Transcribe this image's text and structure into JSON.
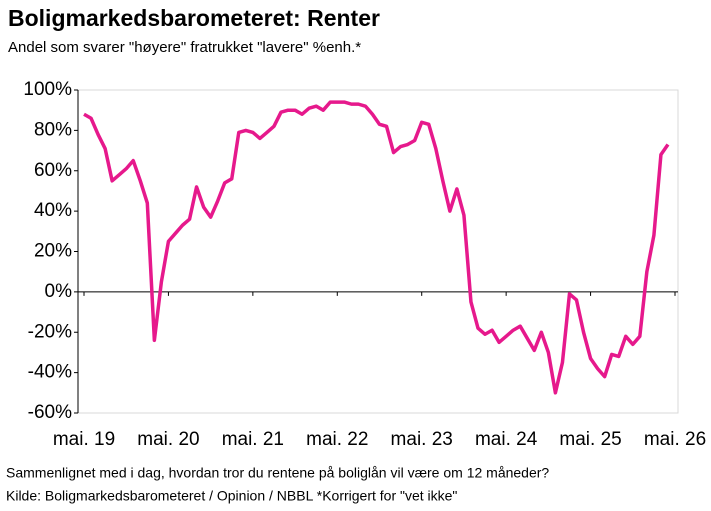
{
  "chart_data": {
    "type": "line",
    "title": "Boligmarkedsbarometeret: Renter",
    "subtitle": "Andel som svarer \"høyere\" fratrukket \"lavere\" %enh.*",
    "footnotes": [
      "Sammenlignet med i dag, hvordan tror du rentene på boliglån vil være om 12 måneder?",
      "Kilde: Boligmarkedsbarometeret / Opinion / NBBL *Korrigert for \"vet ikke\""
    ],
    "categories": [
      "mai. 19",
      null,
      null,
      null,
      null,
      null,
      null,
      null,
      null,
      null,
      null,
      null,
      "mai. 20",
      null,
      null,
      null,
      null,
      null,
      null,
      null,
      null,
      null,
      null,
      null,
      "mai. 21",
      null,
      null,
      null,
      null,
      null,
      null,
      null,
      null,
      null,
      null,
      null,
      "mai. 22",
      null,
      null,
      null,
      null,
      null,
      null,
      null,
      null,
      null,
      null,
      null,
      "mai. 23",
      null,
      null,
      null,
      null,
      null,
      null,
      null,
      null,
      null,
      null,
      null,
      "mai. 24",
      null,
      null,
      null,
      null,
      null,
      null,
      null,
      null,
      null,
      null,
      null,
      "mai. 25",
      null,
      null,
      null,
      null,
      null,
      null,
      null,
      null,
      null,
      null,
      null,
      "mai. 26"
    ],
    "values": [
      88,
      86,
      78,
      71,
      55,
      58,
      61,
      65,
      55,
      44,
      -24,
      5,
      25,
      29,
      33,
      36,
      52,
      42,
      37,
      45,
      54,
      56,
      79,
      80,
      79,
      76,
      79,
      82,
      89,
      90,
      90,
      88,
      91,
      92,
      90,
      94,
      94,
      94,
      93,
      93,
      92,
      88,
      83,
      82,
      69,
      72,
      73,
      75,
      84,
      83,
      71,
      55,
      40,
      51,
      38,
      -5,
      -18,
      -21,
      -19,
      -25,
      -22,
      -19,
      -17,
      -23,
      -29,
      -20,
      -30,
      -50,
      -35,
      -1,
      -4,
      -20,
      -33,
      -38,
      -42,
      -31,
      -32,
      -22,
      -26,
      -22,
      10,
      28,
      68,
      73,
      null
    ],
    "color": "#e6198c",
    "ylim": [
      -60,
      100
    ],
    "yticks": [
      {
        "value": -60,
        "label": "-60%"
      },
      {
        "value": -40,
        "label": "-40%"
      },
      {
        "value": -20,
        "label": "-20%"
      },
      {
        "value": 0,
        "label": "0%"
      },
      {
        "value": 20,
        "label": "20%"
      },
      {
        "value": 40,
        "label": "40%"
      },
      {
        "value": 60,
        "label": "60%"
      },
      {
        "value": 80,
        "label": "80%"
      },
      {
        "value": 100,
        "label": "100%"
      }
    ]
  }
}
